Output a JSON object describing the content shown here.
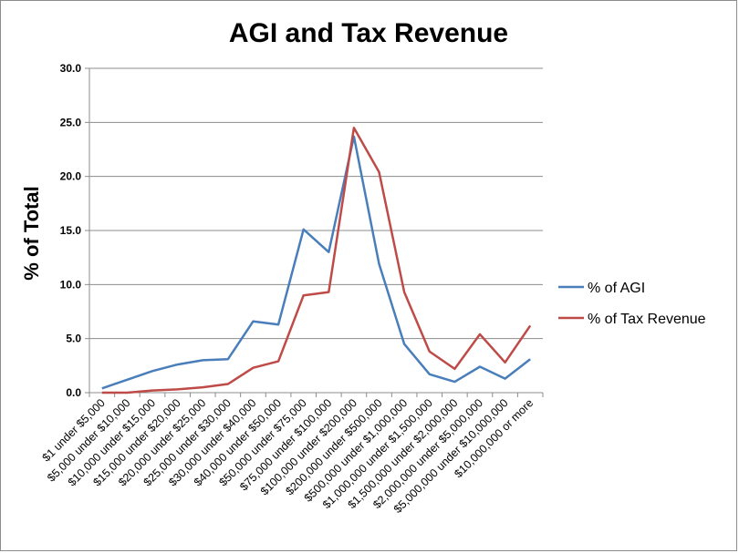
{
  "chart_data": {
    "type": "line",
    "title": "AGI and Tax Revenue",
    "xlabel": "",
    "ylabel": "% of Total",
    "ylim": [
      0,
      30
    ],
    "yticks": [
      "0.0",
      "5.0",
      "10.0",
      "15.0",
      "20.0",
      "25.0",
      "30.0"
    ],
    "grid": true,
    "legend": "right",
    "categories": [
      "$1 under $5,000",
      "$5,000 under $10,000",
      "$10,000 under $15,000",
      "$15,000 under $20,000",
      "$20,000 under $25,000",
      "$25,000 under $30,000",
      "$30,000 under $40,000",
      "$40,000 under $50,000",
      "$50,000 under $75,000",
      "$75,000 under $100,000",
      "$100,000 under $200,000",
      "$200,000 under $500,000",
      "$500,000 under $1,000,000",
      "$1,000,000 under $1,500,000",
      "$1,500,000 under $2,000,000",
      "$2,000,000 under $5,000,000",
      "$5,000,000 under $10,000,000",
      "$10,000,000 or more"
    ],
    "series": [
      {
        "name": "% of AGI",
        "color": "#4a7ebb",
        "values": [
          0.4,
          1.2,
          2.0,
          2.6,
          3.0,
          3.1,
          6.6,
          6.3,
          15.1,
          13.0,
          23.7,
          11.9,
          4.5,
          1.7,
          1.0,
          2.4,
          1.3,
          3.1
        ]
      },
      {
        "name": "% of Tax Revenue",
        "color": "#be4b48",
        "values": [
          0.0,
          0.0,
          0.2,
          0.3,
          0.5,
          0.8,
          2.3,
          2.9,
          9.0,
          9.3,
          24.5,
          20.4,
          9.3,
          3.8,
          2.2,
          5.4,
          2.8,
          6.2
        ]
      }
    ]
  }
}
